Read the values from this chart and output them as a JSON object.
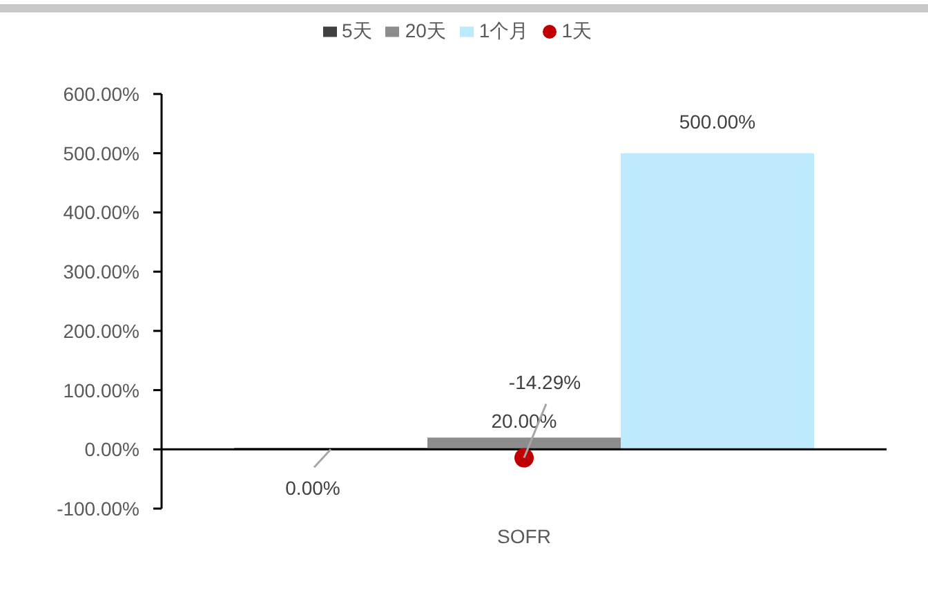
{
  "chart_data": {
    "type": "bar",
    "categories": [
      "SOFR"
    ],
    "series": [
      {
        "name": "5天",
        "color": "#404040",
        "values": [
          0
        ],
        "value_labels": [
          "0.00%"
        ]
      },
      {
        "name": "20天",
        "color": "#8c8c8c",
        "values": [
          20
        ],
        "value_labels": [
          "20.00%"
        ]
      },
      {
        "name": "1个月",
        "color": "#bdeafd",
        "values": [
          500
        ],
        "value_labels": [
          "500.00%"
        ]
      },
      {
        "name": "1天",
        "type": "scatter",
        "marker": "circle",
        "color": "#c00000",
        "values": [
          -14.29
        ],
        "value_labels": [
          "-14.29%"
        ]
      }
    ],
    "ylim": [
      -100,
      600
    ],
    "yticks": [
      {
        "value": -100,
        "label": "-100.00%"
      },
      {
        "value": 0,
        "label": "0.00%"
      },
      {
        "value": 100,
        "label": "100.00%"
      },
      {
        "value": 200,
        "label": "200.00%"
      },
      {
        "value": 300,
        "label": "300.00%"
      },
      {
        "value": 400,
        "label": "400.00%"
      },
      {
        "value": 500,
        "label": "500.00%"
      },
      {
        "value": 600,
        "label": "600.00%"
      }
    ],
    "legend": "top"
  }
}
